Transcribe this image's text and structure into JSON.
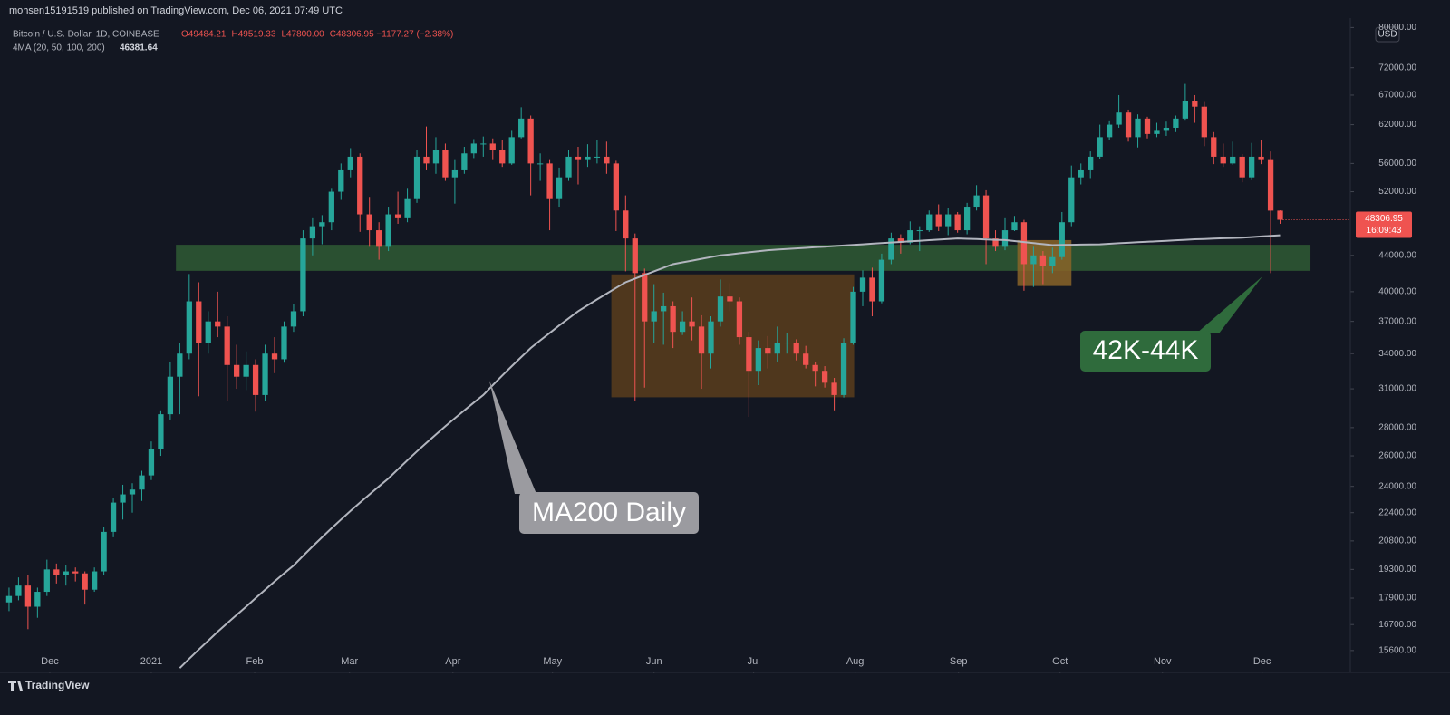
{
  "header": {
    "publisher": "mohsen15191519 published on TradingView.com, Dec 06, 2021 07:49 UTC"
  },
  "footer": {
    "brand": "TradingView"
  },
  "chart_data": {
    "type": "candlestick",
    "title": "Bitcoin / U.S. Dollar, 1D, COINBASE",
    "legend_ohlc": [
      "O49484.21",
      "H49519.33",
      "L47800.00",
      "C48306.95 −1177.27 (−2.38%)"
    ],
    "up_color": "#26a69a",
    "down_color": "#ef5350",
    "log_scale": true,
    "currency": "USD",
    "price_label": "48306.95",
    "countdown": "16:09:43",
    "ylim": [
      14800,
      82000
    ],
    "xlim": [
      -0.95,
      141.4
    ],
    "yticks": [
      {
        "value": 80000,
        "label": "80000.00"
      },
      {
        "value": 72000,
        "label": "72000.00"
      },
      {
        "value": 67000,
        "label": "67000.00"
      },
      {
        "value": 62000,
        "label": "62000.00"
      },
      {
        "value": 56000,
        "label": "56000.00"
      },
      {
        "value": 52000,
        "label": "52000.00"
      },
      {
        "value": 44000,
        "label": "44000.00"
      },
      {
        "value": 40000,
        "label": "40000.00"
      },
      {
        "value": 37000,
        "label": "37000.00"
      },
      {
        "value": 34000,
        "label": "34000.00"
      },
      {
        "value": 31000,
        "label": "31000.00"
      },
      {
        "value": 28000,
        "label": "28000.00"
      },
      {
        "value": 26000,
        "label": "26000.00"
      },
      {
        "value": 24000,
        "label": "24000.00"
      },
      {
        "value": 22400,
        "label": "22400.00"
      },
      {
        "value": 20800,
        "label": "20800.00"
      },
      {
        "value": 19300,
        "label": "19300.00"
      },
      {
        "value": 17900,
        "label": "17900.00"
      },
      {
        "value": 16700,
        "label": "16700.00"
      },
      {
        "value": 15600,
        "label": "15600.00"
      }
    ],
    "xticks": [
      {
        "value": 4.3,
        "label": "Dec"
      },
      {
        "value": 15.0,
        "label": "2021"
      },
      {
        "value": 25.9,
        "label": "Feb"
      },
      {
        "value": 35.9,
        "label": "Mar"
      },
      {
        "value": 46.8,
        "label": "Apr"
      },
      {
        "value": 57.3,
        "label": "May"
      },
      {
        "value": 68.0,
        "label": "Jun"
      },
      {
        "value": 78.5,
        "label": "Jul"
      },
      {
        "value": 89.2,
        "label": "Aug"
      },
      {
        "value": 100.1,
        "label": "Sep"
      },
      {
        "value": 110.8,
        "label": "Oct"
      },
      {
        "value": 121.6,
        "label": "Nov"
      },
      {
        "value": 132.1,
        "label": "Dec"
      }
    ],
    "candles": [
      [
        17700,
        18400,
        17300,
        18000
      ],
      [
        18000,
        18900,
        17800,
        18500
      ],
      [
        18500,
        19000,
        16500,
        17500
      ],
      [
        17500,
        18400,
        17000,
        18200
      ],
      [
        18200,
        19800,
        18000,
        19300
      ],
      [
        19300,
        19600,
        18600,
        19000
      ],
      [
        19000,
        19500,
        18500,
        19200
      ],
      [
        19200,
        19400,
        18700,
        19100
      ],
      [
        19100,
        19200,
        17600,
        18300
      ],
      [
        18300,
        19400,
        18200,
        19200
      ],
      [
        19200,
        21600,
        19000,
        21300
      ],
      [
        21300,
        23300,
        21000,
        23000
      ],
      [
        23000,
        24100,
        22000,
        23500
      ],
      [
        23500,
        24200,
        22400,
        23800
      ],
      [
        23800,
        25000,
        23100,
        24700
      ],
      [
        24700,
        27000,
        24400,
        26500
      ],
      [
        26500,
        29300,
        26000,
        29000
      ],
      [
        29000,
        33300,
        28600,
        32000
      ],
      [
        32000,
        35000,
        29000,
        34000
      ],
      [
        34000,
        41900,
        33500,
        39000
      ],
      [
        39000,
        41000,
        30400,
        35000
      ],
      [
        35000,
        38000,
        34000,
        37000
      ],
      [
        37000,
        40000,
        35500,
        36500
      ],
      [
        36500,
        37500,
        30000,
        33000
      ],
      [
        33000,
        34800,
        31000,
        32000
      ],
      [
        32000,
        34200,
        30900,
        33000
      ],
      [
        33000,
        33500,
        29200,
        30500
      ],
      [
        30500,
        34800,
        30000,
        34000
      ],
      [
        34000,
        35500,
        32300,
        33500
      ],
      [
        33500,
        37000,
        33200,
        36500
      ],
      [
        36500,
        38700,
        36000,
        38000
      ],
      [
        38000,
        47000,
        37500,
        46000
      ],
      [
        46000,
        48500,
        44000,
        47500
      ],
      [
        47500,
        48900,
        45300,
        48000
      ],
      [
        48000,
        52400,
        47000,
        52000
      ],
      [
        52000,
        56000,
        50900,
        55000
      ],
      [
        55000,
        58300,
        54000,
        57000
      ],
      [
        57000,
        57500,
        46800,
        49000
      ],
      [
        49000,
        51300,
        45000,
        47000
      ],
      [
        47000,
        48000,
        43500,
        45000
      ],
      [
        45000,
        50000,
        44500,
        49000
      ],
      [
        49000,
        52000,
        47800,
        48500
      ],
      [
        48500,
        52400,
        48000,
        51000
      ],
      [
        51000,
        58000,
        50500,
        57000
      ],
      [
        57000,
        61700,
        55000,
        56000
      ],
      [
        56000,
        60000,
        54500,
        58000
      ],
      [
        58000,
        59000,
        53500,
        54000
      ],
      [
        54000,
        56500,
        50400,
        55000
      ],
      [
        55000,
        58500,
        54500,
        57500
      ],
      [
        57500,
        59700,
        56800,
        59000
      ],
      [
        59000,
        60100,
        57000,
        59000
      ],
      [
        59000,
        59800,
        56500,
        58000
      ],
      [
        58000,
        59500,
        55500,
        56000
      ],
      [
        56000,
        61000,
        55800,
        60000
      ],
      [
        60000,
        64900,
        59800,
        63000
      ],
      [
        63000,
        63500,
        51500,
        56000
      ],
      [
        56000,
        57500,
        53500,
        56000
      ],
      [
        56000,
        56500,
        47000,
        51000
      ],
      [
        51000,
        55400,
        50000,
        54000
      ],
      [
        54000,
        58000,
        53500,
        57000
      ],
      [
        57000,
        58500,
        53000,
        56500
      ],
      [
        56500,
        58900,
        55500,
        57000
      ],
      [
        57000,
        59500,
        56000,
        57000
      ],
      [
        57000,
        59300,
        54500,
        56000
      ],
      [
        56000,
        56400,
        46900,
        49500
      ],
      [
        49500,
        51500,
        42200,
        46000
      ],
      [
        46000,
        46600,
        30000,
        42000
      ],
      [
        42000,
        42500,
        31100,
        37000
      ],
      [
        37000,
        40800,
        35000,
        38000
      ],
      [
        38000,
        39900,
        34800,
        38500
      ],
      [
        38500,
        39000,
        34500,
        36000
      ],
      [
        36000,
        38000,
        35700,
        37000
      ],
      [
        37000,
        39400,
        35200,
        36500
      ],
      [
        36500,
        37600,
        31000,
        34000
      ],
      [
        34000,
        37500,
        32700,
        37000
      ],
      [
        37000,
        41300,
        36500,
        39500
      ],
      [
        39500,
        40900,
        38000,
        39000
      ],
      [
        39000,
        39400,
        34800,
        35500
      ],
      [
        35500,
        36000,
        28800,
        32500
      ],
      [
        32500,
        35200,
        31300,
        34500
      ],
      [
        34500,
        35600,
        32700,
        34000
      ],
      [
        34000,
        36500,
        33300,
        35000
      ],
      [
        35000,
        35900,
        34000,
        35000
      ],
      [
        35000,
        35300,
        33400,
        34000
      ],
      [
        34000,
        34700,
        32700,
        33000
      ],
      [
        33000,
        33300,
        31200,
        32500
      ],
      [
        32500,
        32900,
        31100,
        31500
      ],
      [
        31500,
        31900,
        29300,
        30500
      ],
      [
        30500,
        35400,
        30300,
        35000
      ],
      [
        35000,
        40500,
        34800,
        40000
      ],
      [
        40000,
        42300,
        38500,
        41500
      ],
      [
        41500,
        42600,
        37500,
        39000
      ],
      [
        39000,
        44200,
        38800,
        43500
      ],
      [
        43500,
        46700,
        43000,
        46000
      ],
      [
        46000,
        46500,
        44200,
        45500
      ],
      [
        45500,
        48100,
        45300,
        47000
      ],
      [
        47000,
        47500,
        44500,
        47000
      ],
      [
        47000,
        49500,
        46800,
        49000
      ],
      [
        49000,
        50300,
        46900,
        47500
      ],
      [
        47500,
        49800,
        46400,
        49000
      ],
      [
        49000,
        49300,
        46700,
        47000
      ],
      [
        47000,
        50500,
        46500,
        50000
      ],
      [
        50000,
        52900,
        49500,
        51500
      ],
      [
        51500,
        52200,
        43000,
        46000
      ],
      [
        46000,
        47000,
        44500,
        45000
      ],
      [
        45000,
        48500,
        44600,
        47000
      ],
      [
        47000,
        48800,
        46900,
        48000
      ],
      [
        48000,
        48300,
        40100,
        43000
      ],
      [
        43000,
        45000,
        40500,
        44000
      ],
      [
        44000,
        44500,
        40800,
        42800
      ],
      [
        42800,
        44900,
        42000,
        43800
      ],
      [
        43800,
        49300,
        43500,
        48000
      ],
      [
        48000,
        55700,
        47500,
        54000
      ],
      [
        54000,
        56000,
        53000,
        55000
      ],
      [
        55000,
        57800,
        53900,
        57000
      ],
      [
        57000,
        62000,
        56700,
        60000
      ],
      [
        60000,
        62700,
        59600,
        62000
      ],
      [
        62000,
        67000,
        61500,
        64000
      ],
      [
        64000,
        64500,
        59300,
        60000
      ],
      [
        60000,
        63700,
        58400,
        63000
      ],
      [
        63000,
        63300,
        59800,
        60500
      ],
      [
        60500,
        62300,
        60000,
        61000
      ],
      [
        61000,
        62500,
        60200,
        61500
      ],
      [
        61500,
        63500,
        60800,
        63000
      ],
      [
        63000,
        69000,
        62800,
        66000
      ],
      [
        66000,
        67000,
        62300,
        65000
      ],
      [
        65000,
        65800,
        58600,
        60000
      ],
      [
        60000,
        60800,
        55900,
        57000
      ],
      [
        57000,
        59000,
        55500,
        56000
      ],
      [
        56000,
        59300,
        55800,
        57000
      ],
      [
        57000,
        57400,
        53300,
        54000
      ],
      [
        54000,
        59100,
        53600,
        57000
      ],
      [
        57000,
        59500,
        55900,
        56500
      ],
      [
        56500,
        57800,
        42000,
        49484.21
      ],
      [
        49484.21,
        49519.33,
        47800,
        48306.95
      ]
    ],
    "ma": {
      "name": "4MA (20, 50, 100, 200)",
      "color": "#b2b5be",
      "last_label": "46381.64",
      "values": [
        null,
        null,
        null,
        null,
        null,
        null,
        null,
        null,
        null,
        null,
        null,
        null,
        null,
        null,
        null,
        null,
        null,
        null,
        14900,
        15270,
        15640,
        16010,
        16390,
        16760,
        17130,
        17500,
        17900,
        18300,
        18700,
        19100,
        19500,
        20000,
        20500,
        21000,
        21500,
        22000,
        22500,
        23000,
        23500,
        24000,
        24500,
        25100,
        25700,
        26300,
        26900,
        27500,
        28100,
        28700,
        29300,
        29900,
        30500,
        31300,
        32100,
        32900,
        33700,
        34500,
        35200,
        35900,
        36600,
        37300,
        38000,
        38600,
        39200,
        39800,
        40400,
        41000,
        41400,
        41800,
        42200,
        42600,
        43000,
        43200,
        43400,
        43600,
        43800,
        44000,
        44120,
        44240,
        44360,
        44480,
        44600,
        44670,
        44740,
        44810,
        44880,
        44950,
        45020,
        45090,
        45160,
        45230,
        45300,
        45370,
        45440,
        45510,
        45580,
        45650,
        45720,
        45790,
        45860,
        45930,
        46000,
        45960,
        45920,
        45880,
        45840,
        45800,
        45680,
        45560,
        45440,
        45320,
        45200,
        45220,
        45240,
        45260,
        45280,
        45300,
        45360,
        45420,
        45480,
        45540,
        45600,
        45660,
        45720,
        45780,
        45840,
        45900,
        45940,
        45980,
        46020,
        46060,
        46100,
        46170,
        46240,
        46310,
        46381.64
      ]
    },
    "zones": [
      {
        "low": 42250,
        "high": 45240,
        "x": [
          17.6,
          137.2
        ],
        "color": "#2f5a34"
      }
    ],
    "boxes": [
      {
        "low": 30320,
        "high": 41860,
        "x": [
          63.5,
          89.1
        ],
        "color": "#5a3d1c"
      },
      {
        "low": 40600,
        "high": 45800,
        "x": [
          106.3,
          112.0
        ],
        "color": "#8a6428"
      }
    ],
    "annotations": [
      {
        "text": "MA200 Daily",
        "color": "#9b9ba0"
      },
      {
        "text": "42K-44K",
        "color": "#2f6b3c"
      }
    ]
  }
}
